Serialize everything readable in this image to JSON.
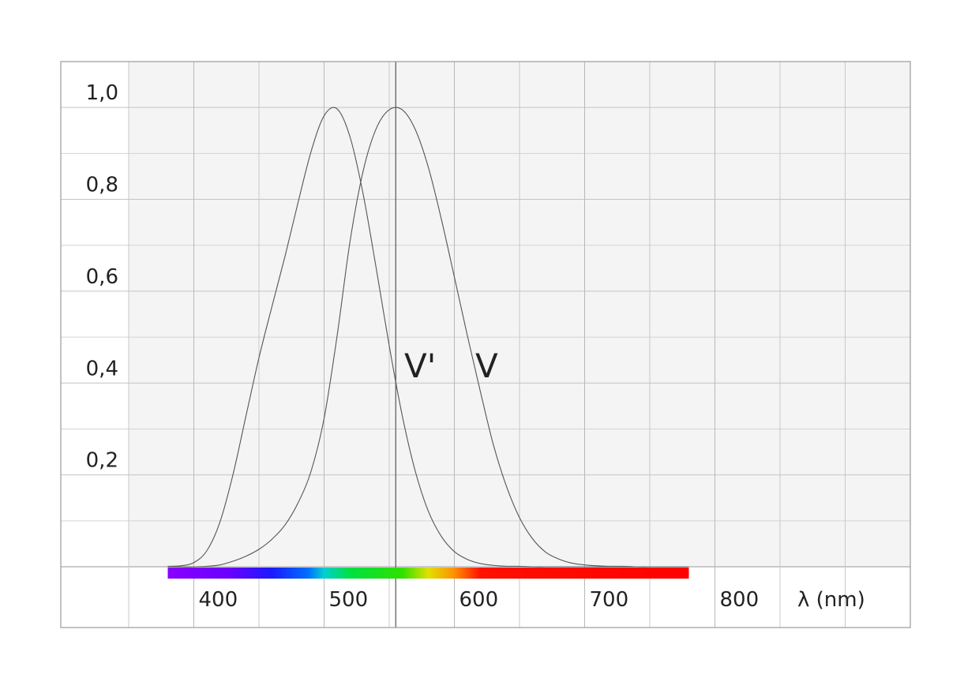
{
  "chart_data": {
    "type": "line",
    "x": [
      380,
      390,
      400,
      410,
      420,
      430,
      440,
      450,
      460,
      470,
      480,
      490,
      500,
      510,
      520,
      530,
      540,
      550,
      560,
      570,
      580,
      590,
      600,
      610,
      620,
      630,
      640,
      650,
      660,
      670,
      680,
      690,
      700,
      710,
      720,
      730,
      740,
      750,
      760,
      770,
      780
    ],
    "series": [
      {
        "name": "V'",
        "color": "#555555",
        "values": [
          0.001,
          0.002,
          0.009,
          0.035,
          0.097,
          0.2,
          0.328,
          0.455,
          0.567,
          0.676,
          0.793,
          0.904,
          0.982,
          0.997,
          0.935,
          0.811,
          0.65,
          0.481,
          0.329,
          0.208,
          0.121,
          0.066,
          0.033,
          0.016,
          0.007,
          0.003,
          0.001,
          0.001,
          0,
          0,
          0,
          0,
          0,
          0,
          0,
          0,
          0,
          0,
          0,
          0,
          0
        ]
      },
      {
        "name": "V",
        "color": "#555555",
        "values": [
          0,
          0,
          0,
          0.001,
          0.004,
          0.012,
          0.023,
          0.038,
          0.06,
          0.091,
          0.139,
          0.208,
          0.323,
          0.503,
          0.71,
          0.862,
          0.954,
          0.995,
          0.995,
          0.952,
          0.87,
          0.757,
          0.631,
          0.503,
          0.381,
          0.265,
          0.175,
          0.107,
          0.061,
          0.032,
          0.017,
          0.008,
          0.004,
          0.002,
          0.001,
          0.001,
          0,
          0,
          0,
          0,
          0
        ]
      }
    ],
    "x_label": "λ (nm)",
    "xlim": [
      350,
      950
    ],
    "xticks": [
      400,
      500,
      600,
      700,
      800
    ],
    "x_minor_grid": [
      350,
      450,
      550,
      650,
      750,
      850,
      900,
      950
    ],
    "ylim": [
      0,
      1.1
    ],
    "yticks": [
      {
        "value": 0.2,
        "label": "0,2"
      },
      {
        "value": 0.4,
        "label": "0,4"
      },
      {
        "value": 0.6,
        "label": "0,6"
      },
      {
        "value": 0.8,
        "label": "0,8"
      },
      {
        "value": 1.0,
        "label": "1,0"
      }
    ],
    "y_minor_grid": [
      0,
      0.1,
      0.3,
      0.5,
      0.7,
      0.9
    ],
    "reference_x": 555,
    "spectrum": [
      380,
      780
    ],
    "grid": true
  }
}
